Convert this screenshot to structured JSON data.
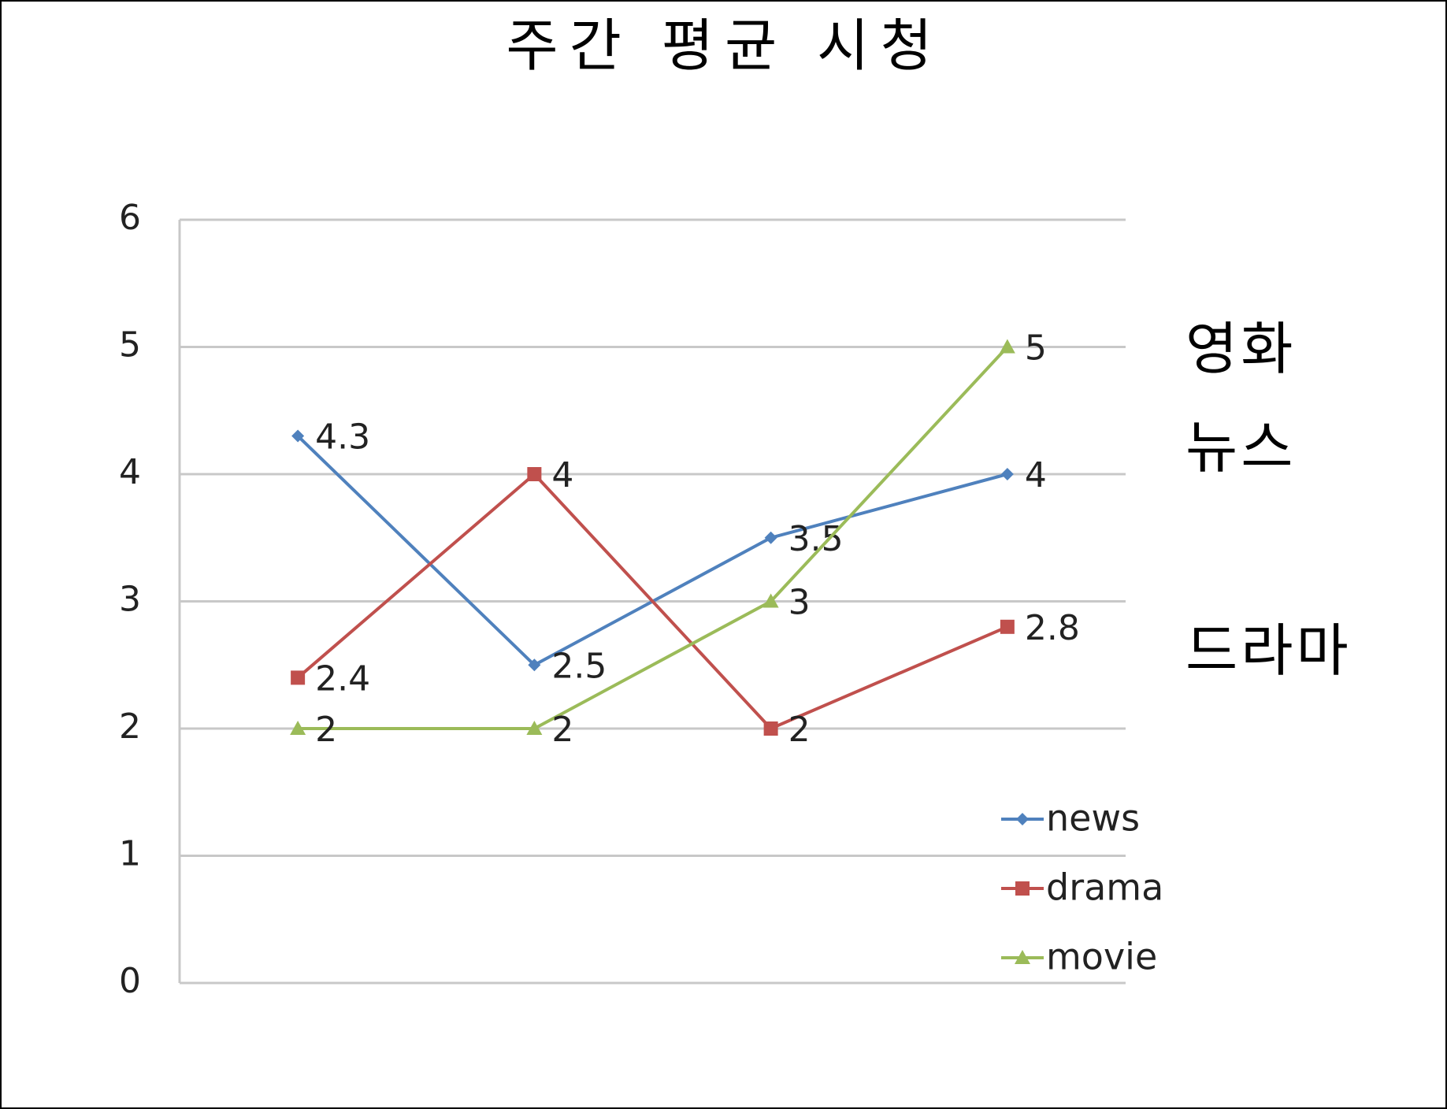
{
  "chart_data": {
    "type": "line",
    "title": "주간 평균 시청",
    "categories": [
      null,
      null,
      null,
      null
    ],
    "series": [
      {
        "name": "news",
        "color": "#4f81bd",
        "marker": "diamond",
        "values": [
          4.3,
          2.5,
          3.5,
          4
        ]
      },
      {
        "name": "drama",
        "color": "#c0504d",
        "marker": "square",
        "values": [
          2.4,
          4,
          2,
          2.8
        ]
      },
      {
        "name": "movie",
        "color": "#9bbb59",
        "marker": "triangle",
        "values": [
          2,
          2,
          3,
          5
        ]
      }
    ],
    "annotations": [
      "영화",
      "뉴스",
      "드라마"
    ],
    "ylim": [
      0,
      6
    ],
    "yticks": [
      0,
      1,
      2,
      3,
      4,
      5,
      6
    ],
    "grid": true,
    "legend": "bottom-right"
  }
}
